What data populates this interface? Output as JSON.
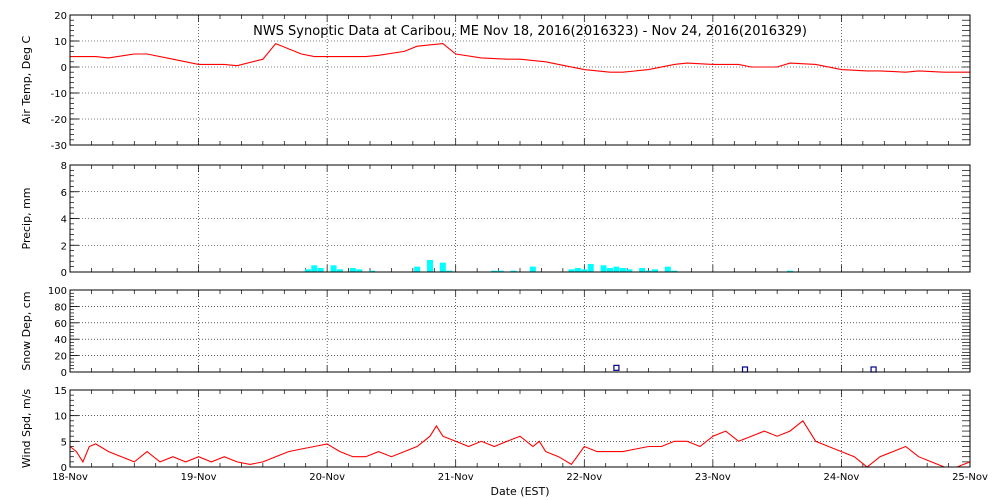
{
  "title": "NWS Synoptic Data at Caribou, ME    Nov 18, 2016(2016323) - Nov 24, 2016(2016329)",
  "xlabel": "Date (EST)",
  "x_ticks": [
    "18-Nov",
    "19-Nov",
    "20-Nov",
    "21-Nov",
    "22-Nov",
    "23-Nov",
    "24-Nov",
    "25-Nov"
  ],
  "chart_data": [
    {
      "type": "line",
      "ylabel": "Air Temp, Deg C",
      "ylim": [
        -30,
        20
      ],
      "yticks": [
        20,
        10,
        0,
        -10,
        -20,
        -30
      ],
      "grid": true,
      "color": "#ff0000",
      "x_unit": "days since 18-Nov 00:00",
      "x": [
        0.0,
        0.2,
        0.3,
        0.5,
        0.6,
        0.8,
        1.0,
        1.2,
        1.3,
        1.5,
        1.6,
        1.8,
        1.9,
        2.1,
        2.3,
        2.4,
        2.6,
        2.7,
        2.9,
        3.0,
        3.2,
        3.4,
        3.5,
        3.7,
        3.8,
        4.0,
        4.2,
        4.3,
        4.5,
        4.7,
        4.8,
        5.0,
        5.2,
        5.3,
        5.5,
        5.6,
        5.8,
        6.0,
        6.2,
        6.3,
        6.5,
        6.6,
        6.8,
        7.0
      ],
      "y": [
        4,
        4,
        3.5,
        5,
        5,
        3,
        1,
        1,
        0.5,
        3,
        9,
        5,
        4,
        4,
        4,
        4.5,
        6,
        8,
        9,
        5,
        3.5,
        3,
        3,
        2,
        1,
        -1,
        -2,
        -2,
        -1,
        1,
        1.5,
        1,
        1,
        0,
        0,
        1.5,
        1,
        -1,
        -1.5,
        -1.5,
        -2,
        -1.5,
        -2,
        -2
      ]
    },
    {
      "type": "bar",
      "ylabel": "Precip, mm",
      "ylim": [
        0,
        8
      ],
      "yticks": [
        8,
        6,
        4,
        2,
        0
      ],
      "grid": true,
      "color": "#00ffff",
      "x_unit": "days since 18-Nov 00:00",
      "x": [
        1.85,
        1.9,
        1.95,
        2.05,
        2.1,
        2.2,
        2.25,
        2.35,
        2.7,
        2.8,
        2.9,
        2.95,
        3.3,
        3.35,
        3.45,
        3.6,
        3.9,
        3.95,
        4.0,
        4.05,
        4.15,
        4.2,
        4.25,
        4.3,
        4.35,
        4.45,
        4.5,
        4.55,
        4.65,
        4.7,
        5.6
      ],
      "values": [
        0.2,
        0.5,
        0.3,
        0.5,
        0.2,
        0.3,
        0.2,
        0.1,
        0.4,
        0.9,
        0.7,
        0.1,
        0.1,
        0.1,
        0.1,
        0.4,
        0.2,
        0.3,
        0.2,
        0.6,
        0.5,
        0.3,
        0.4,
        0.3,
        0.2,
        0.3,
        0.1,
        0.2,
        0.4,
        0.1,
        0.1
      ]
    },
    {
      "type": "scatter",
      "ylabel": "Snow Dep, cm",
      "ylim": [
        0,
        100
      ],
      "yticks": [
        100,
        80,
        60,
        40,
        20,
        0
      ],
      "grid": true,
      "color": "#00008b",
      "marker": "square",
      "x_unit": "days since 18-Nov 00:00",
      "x": [
        4.25,
        5.25,
        6.25
      ],
      "y": [
        2,
        0,
        0
      ]
    },
    {
      "type": "line",
      "ylabel": "Wind Spd, m/s",
      "ylim": [
        0,
        15
      ],
      "yticks": [
        15,
        10,
        5,
        0
      ],
      "grid": true,
      "color": "#ff0000",
      "x_unit": "days since 18-Nov 00:00",
      "x": [
        0.0,
        0.05,
        0.1,
        0.15,
        0.2,
        0.3,
        0.4,
        0.5,
        0.6,
        0.7,
        0.8,
        0.9,
        1.0,
        1.1,
        1.2,
        1.3,
        1.4,
        1.5,
        1.6,
        1.7,
        1.8,
        1.9,
        2.0,
        2.1,
        2.2,
        2.3,
        2.4,
        2.5,
        2.6,
        2.7,
        2.8,
        2.85,
        2.9,
        3.0,
        3.1,
        3.2,
        3.3,
        3.4,
        3.5,
        3.6,
        3.65,
        3.7,
        3.8,
        3.9,
        4.0,
        4.1,
        4.2,
        4.3,
        4.4,
        4.5,
        4.6,
        4.7,
        4.8,
        4.9,
        5.0,
        5.1,
        5.2,
        5.3,
        5.4,
        5.5,
        5.6,
        5.7,
        5.8,
        5.9,
        6.0,
        6.1,
        6.2,
        6.3,
        6.4,
        6.5,
        6.6,
        6.7,
        6.8,
        6.9,
        7.0
      ],
      "y": [
        4,
        3,
        1,
        4,
        4.5,
        3,
        2,
        1,
        3,
        1,
        2,
        1,
        2,
        1,
        2,
        1,
        0.5,
        1,
        2,
        3,
        3.5,
        4,
        4.5,
        3,
        2,
        2,
        3,
        2,
        3,
        4,
        6,
        8,
        6,
        5,
        4,
        5,
        4,
        5,
        6,
        4,
        5,
        3,
        2,
        0.5,
        4,
        3,
        3,
        3,
        3.5,
        4,
        4,
        5,
        5,
        4,
        6,
        7,
        5,
        6,
        7,
        6,
        7,
        9,
        5,
        4,
        3,
        2,
        0,
        2,
        3,
        4,
        2,
        1,
        0,
        0,
        1
      ]
    }
  ]
}
